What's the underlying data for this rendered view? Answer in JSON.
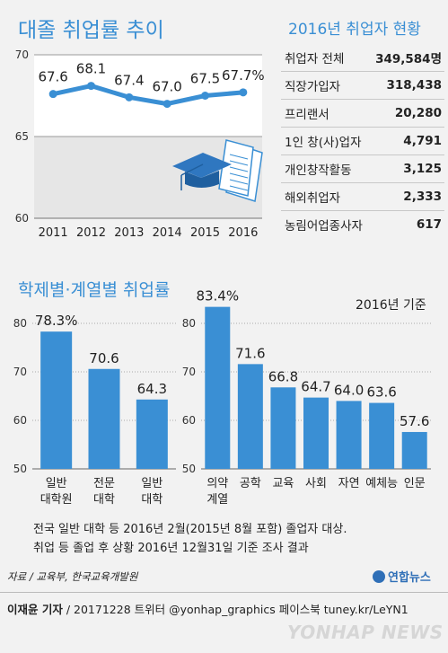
{
  "titles": {
    "trend": "대졸 취업률 추이",
    "by_school": "학제별·계열별 취업률",
    "status_2016": "2016년 취업자 현황",
    "basis": "2016년 기준"
  },
  "chart_data": [
    {
      "type": "line",
      "title": "대졸 취업률 추이",
      "x": [
        "2011",
        "2012",
        "2013",
        "2014",
        "2015",
        "2016"
      ],
      "values": [
        67.6,
        68.1,
        67.4,
        67.0,
        67.5,
        67.7
      ],
      "data_labels": [
        "67.6",
        "68.1",
        "67.4",
        "67.0",
        "67.5",
        "67.7%"
      ],
      "yticks": [
        "70",
        "65",
        "60"
      ],
      "ylim": [
        60,
        70
      ],
      "color": "#3a8fd4"
    },
    {
      "type": "bar",
      "title": "학제별·계열별 취업률",
      "categories": [
        "일반\n대학원",
        "전문\n대학",
        "일반\n대학"
      ],
      "values": [
        78.3,
        70.6,
        64.3
      ],
      "data_labels": [
        "78.3%",
        "70.6",
        "64.3"
      ],
      "yticks": [
        "80",
        "70",
        "60",
        "50"
      ],
      "ylim": [
        50,
        80
      ],
      "color": "#3a8fd4"
    },
    {
      "type": "bar",
      "subtitle": "2016년 기준",
      "categories": [
        "의약\n계열",
        "공학",
        "교육",
        "사회",
        "자연",
        "예체능",
        "인문"
      ],
      "values": [
        83.4,
        71.6,
        66.8,
        64.7,
        64.0,
        63.6,
        57.6
      ],
      "data_labels": [
        "83.4%",
        "71.6",
        "66.8",
        "64.7",
        "64.0",
        "63.6",
        "57.6"
      ],
      "yticks": [
        "80",
        "70",
        "60",
        "50"
      ],
      "ylim": [
        50,
        85
      ],
      "color": "#3a8fd4"
    },
    {
      "type": "table",
      "title": "2016년 취업자 현황",
      "rows": [
        {
          "label": "취업자 전체",
          "value": "349,584명"
        },
        {
          "label": "직장가입자",
          "value": "318,438"
        },
        {
          "label": "프리랜서",
          "value": "20,280"
        },
        {
          "label": "1인 창(사)업자",
          "value": "4,791"
        },
        {
          "label": "개인창작활동",
          "value": "3,125"
        },
        {
          "label": "해외취업자",
          "value": "2,333"
        },
        {
          "label": "농림어업종사자",
          "value": "617"
        }
      ]
    }
  ],
  "notes": [
    "전국 일반 대학 등 2016년 2월(2015년 8월 포함) 졸업자 대상.",
    "취업 등 졸업 후 상황 2016년 12월31일 기준 조사 결과"
  ],
  "source": "자료 / 교육부, 한국교육개발원",
  "logo": "연합뉴스",
  "footer": {
    "author": "이재윤 기자",
    "rest": " / 20171228  트위터 @yonhap_graphics  페이스북 tuney.kr/LeYN1"
  },
  "watermark": "YONHAP NEWS"
}
